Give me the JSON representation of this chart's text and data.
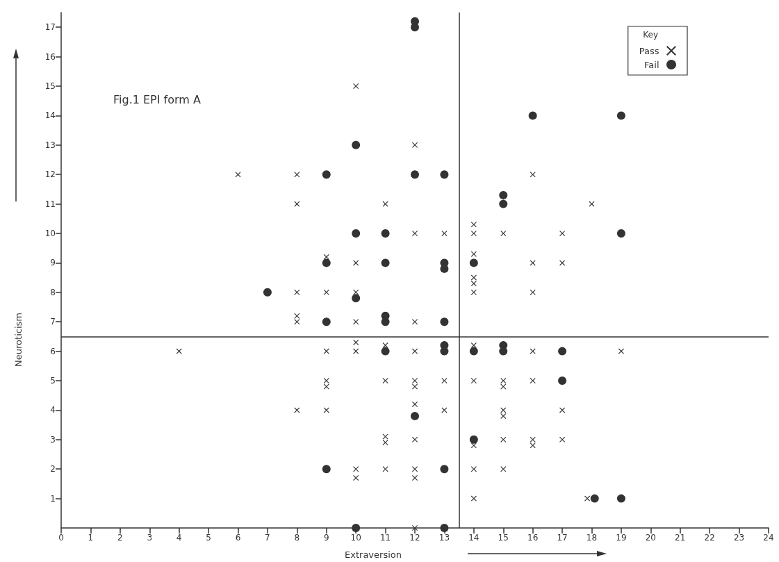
{
  "chart_data": {
    "type": "scatter",
    "title": "Fig.1 EPI form A",
    "xlabel": "Extraversion",
    "ylabel": "Neuroticism",
    "legend_title": "Key",
    "legend": "top right",
    "grid": false,
    "xlim": [
      0,
      24
    ],
    "xticks": [
      0,
      1,
      2,
      3,
      4,
      5,
      6,
      7,
      8,
      9,
      10,
      11,
      12,
      13,
      14,
      15,
      16,
      17,
      18,
      19,
      20,
      21,
      22,
      23,
      24
    ],
    "ylim": [
      0,
      17.5
    ],
    "yticks": [
      1,
      2,
      3,
      4,
      5,
      6,
      7,
      8,
      9,
      10,
      11,
      12,
      13,
      14,
      15,
      16,
      17
    ],
    "ref_lines": [
      {
        "axis": "x",
        "value": 13.5,
        "color": "#333333"
      },
      {
        "axis": "y",
        "value": 6.5,
        "color": "#333333"
      }
    ],
    "series": [
      {
        "name": "Pass",
        "color": "#333333",
        "marker": "cross",
        "x": [
          4,
          6,
          8,
          8,
          8,
          8,
          8,
          8,
          9,
          9,
          9,
          9,
          9,
          9,
          10,
          10,
          10,
          10,
          10,
          10,
          10,
          10,
          11,
          11,
          11,
          11,
          11,
          11,
          12,
          12,
          12,
          12,
          12,
          12,
          12,
          12,
          12,
          12,
          12,
          13,
          13,
          13,
          14,
          14,
          14,
          14,
          14,
          14,
          14,
          14,
          14,
          14,
          14,
          15,
          15,
          15,
          15,
          15,
          15,
          15,
          16,
          16,
          16,
          16,
          16,
          16,
          16,
          17,
          17,
          17,
          17,
          18,
          17.85,
          19
        ],
        "values": [
          6,
          12,
          12,
          11,
          8,
          7.2,
          7,
          4,
          9.2,
          8,
          6,
          5,
          4.8,
          4,
          15,
          9,
          8,
          7,
          6.3,
          6,
          2,
          1.7,
          11,
          6.2,
          5,
          3.1,
          2.9,
          2,
          13,
          10,
          7,
          6,
          5,
          4.8,
          4.2,
          3,
          2,
          1.7,
          0,
          10,
          5,
          4,
          10.3,
          10,
          9.3,
          8.5,
          8.3,
          8,
          6.2,
          5,
          2.8,
          2,
          1,
          10,
          5,
          4.8,
          4,
          3.8,
          3,
          2,
          12,
          9,
          8,
          6,
          5,
          3,
          2.8,
          10,
          9,
          4,
          3,
          11,
          1,
          6
        ]
      },
      {
        "name": "Fail",
        "color": "#333333",
        "marker": "circle",
        "x": [
          7,
          9,
          9,
          9,
          9,
          10,
          10,
          10,
          10,
          11,
          11,
          11,
          11,
          11,
          12,
          12,
          12,
          12,
          13,
          13,
          13,
          13,
          13,
          13,
          13,
          13,
          14,
          14,
          14,
          15,
          15,
          15,
          15,
          16,
          17,
          17,
          18.1,
          19,
          19,
          19
        ],
        "values": [
          8,
          12,
          9,
          7,
          2,
          13,
          10,
          7.8,
          0,
          10,
          9,
          7.2,
          7,
          6,
          17.2,
          17,
          12,
          3.8,
          12,
          9,
          8.8,
          7,
          6.2,
          6,
          2,
          0,
          9,
          6,
          3,
          11.3,
          11,
          6.2,
          6,
          14,
          6,
          5,
          1,
          14,
          10,
          1
        ]
      }
    ]
  }
}
